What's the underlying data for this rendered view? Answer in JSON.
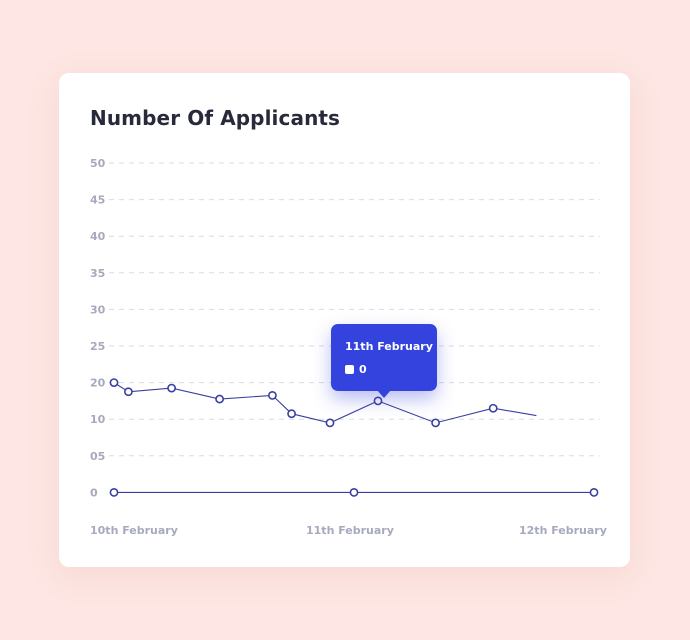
{
  "card": {
    "title": "Number Of Applicants"
  },
  "tooltip": {
    "date": "11th February",
    "value": "0"
  },
  "colors": {
    "line": "#3a3fa0",
    "accent": "#3443dd",
    "background": "#fde6e3"
  },
  "chart_data": {
    "type": "line",
    "title": "Number Of Applicants",
    "xlabel": "",
    "ylabel": "",
    "ylim": [
      0,
      50
    ],
    "y_ticks": [
      "50",
      "45",
      "40",
      "35",
      "30",
      "25",
      "20",
      "10",
      "05",
      "0"
    ],
    "x_ticks": [
      "10th February",
      "11th February",
      "12th February"
    ],
    "grid": true,
    "series": [
      {
        "points": [
          {
            "x": 0.0,
            "tick": 20,
            "marker": true
          },
          {
            "x": 0.03,
            "tick": 17.5,
            "marker": true
          },
          {
            "x": 0.12,
            "tick": 18.5,
            "marker": true
          },
          {
            "x": 0.22,
            "tick": 15.5,
            "marker": true
          },
          {
            "x": 0.33,
            "tick": 16.5,
            "marker": true
          },
          {
            "x": 0.37,
            "tick": 11.5,
            "marker": true
          },
          {
            "x": 0.45,
            "tick": 9.5,
            "marker": true
          },
          {
            "x": 0.55,
            "tick": 15,
            "marker": true
          },
          {
            "x": 0.67,
            "tick": 9.5,
            "marker": true
          },
          {
            "x": 0.79,
            "tick": 13,
            "marker": true
          },
          {
            "x": 0.88,
            "tick": 11,
            "marker": false
          }
        ]
      },
      {
        "points": [
          {
            "x": 0.0,
            "tick": 0,
            "marker": true
          },
          {
            "x": 0.5,
            "tick": 0,
            "marker": true
          },
          {
            "x": 1.0,
            "tick": 0,
            "marker": true
          }
        ]
      }
    ]
  }
}
